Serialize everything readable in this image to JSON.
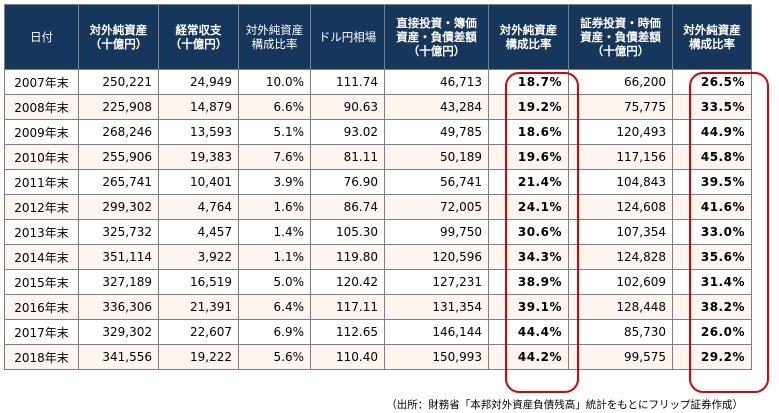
{
  "table": {
    "headers": [
      [
        "日付"
      ],
      [
        "対外純資産",
        "（十億円）"
      ],
      [
        "経常収支",
        "（十億円）"
      ],
      [
        "対外純資産",
        "構成比率"
      ],
      [
        "ドル円相場"
      ],
      [
        "直接投資・簿価",
        "資産・負債差額",
        "（十億円）"
      ],
      [
        "対外純資産",
        "構成比率"
      ],
      [
        "証券投資・時価",
        "資産・負債差額",
        "（十億円）"
      ],
      [
        "対外純資産",
        "構成比率"
      ]
    ],
    "rows": [
      [
        "2007年末",
        "250,221",
        "24,949",
        "10.0%",
        "111.74",
        "46,713",
        "18.7%",
        "66,200",
        "26.5%"
      ],
      [
        "2008年末",
        "225,908",
        "14,879",
        "6.6%",
        "90.63",
        "43,284",
        "19.2%",
        "75,775",
        "33.5%"
      ],
      [
        "2009年末",
        "268,246",
        "13,593",
        "5.1%",
        "93.02",
        "49,785",
        "18.6%",
        "120,493",
        "44.9%"
      ],
      [
        "2010年末",
        "255,906",
        "19,383",
        "7.6%",
        "81.11",
        "50,189",
        "19.6%",
        "117,156",
        "45.8%"
      ],
      [
        "2011年末",
        "265,741",
        "10,401",
        "3.9%",
        "76.90",
        "56,741",
        "21.4%",
        "104,843",
        "39.5%"
      ],
      [
        "2012年末",
        "299,302",
        "4,764",
        "1.6%",
        "86.74",
        "72,005",
        "24.1%",
        "124,608",
        "41.6%"
      ],
      [
        "2013年末",
        "325,732",
        "4,457",
        "1.4%",
        "105.30",
        "99,750",
        "30.6%",
        "107,354",
        "33.0%"
      ],
      [
        "2014年末",
        "351,114",
        "3,922",
        "1.1%",
        "119.80",
        "120,596",
        "34.3%",
        "124,828",
        "35.6%"
      ],
      [
        "2015年末",
        "327,189",
        "16,519",
        "5.0%",
        "120.42",
        "127,231",
        "38.9%",
        "102,609",
        "31.4%"
      ],
      [
        "2016年末",
        "336,306",
        "21,391",
        "6.4%",
        "117.11",
        "131,354",
        "39.1%",
        "128,448",
        "38.2%"
      ],
      [
        "2017年末",
        "329,302",
        "22,607",
        "6.9%",
        "112.65",
        "146,144",
        "44.4%",
        "85,730",
        "26.0%"
      ],
      [
        "2018年末",
        "341,556",
        "19,222",
        "5.6%",
        "110.40",
        "150,993",
        "44.2%",
        "99,575",
        "29.2%"
      ]
    ]
  },
  "footnote": "（出所：財務省「本邦対外資産負債残高」統計をもとにフリップ証券作成）",
  "colors": {
    "header_bg": "#16365c",
    "highlight": "#e00000",
    "stripe": "#fdf5f0"
  }
}
